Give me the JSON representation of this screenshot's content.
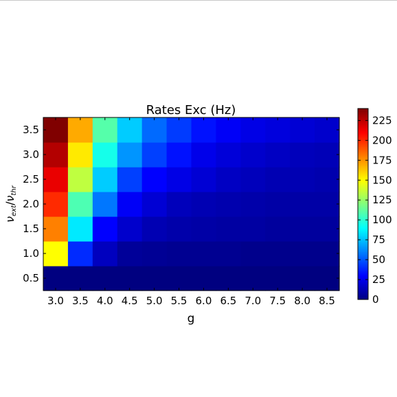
{
  "chart_data": {
    "type": "heatmap",
    "title": "Rates Exc (Hz)",
    "xlabel": "g",
    "ylabel_parts": {
      "base": "ν",
      "num_sub": "ext",
      "sep": "/",
      "den_sub": "thr"
    },
    "x_categories": [
      "3.0",
      "3.5",
      "4.0",
      "4.5",
      "5.0",
      "5.5",
      "6.0",
      "6.5",
      "7.0",
      "7.5",
      "8.0",
      "8.5"
    ],
    "y_categories": [
      "0.5",
      "1.0",
      "1.5",
      "2.0",
      "2.5",
      "3.0",
      "3.5"
    ],
    "values": [
      [
        0,
        0,
        0,
        0,
        0,
        0,
        0,
        0,
        0,
        0,
        0,
        0
      ],
      [
        150,
        40,
        15,
        6,
        5,
        4,
        4,
        4,
        3,
        3,
        3,
        3
      ],
      [
        180,
        85,
        30,
        18,
        12,
        10,
        9,
        8,
        8,
        7,
        7,
        7
      ],
      [
        200,
        108,
        58,
        28,
        20,
        14,
        12,
        11,
        10,
        9,
        9,
        9
      ],
      [
        215,
        135,
        78,
        45,
        30,
        24,
        20,
        16,
        14,
        12,
        12,
        11
      ],
      [
        228,
        155,
        95,
        65,
        45,
        34,
        25,
        21,
        18,
        16,
        14,
        13
      ],
      [
        240,
        170,
        110,
        78,
        55,
        44,
        34,
        28,
        24,
        22,
        20,
        18
      ]
    ],
    "colorbar": {
      "cmap": "jet",
      "vmin": 0,
      "vmax": 240,
      "ticks": [
        "0",
        "25",
        "50",
        "75",
        "100",
        "125",
        "150",
        "175",
        "200",
        "225"
      ]
    }
  }
}
